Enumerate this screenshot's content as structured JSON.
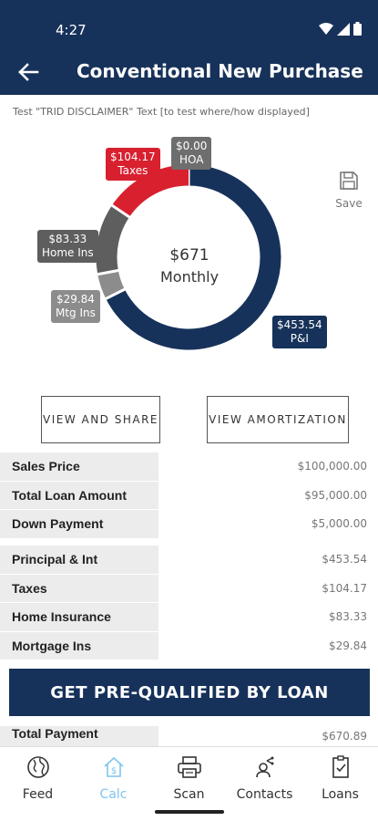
{
  "status": {
    "time": "4:27"
  },
  "header": {
    "title": "Conventional New Purchase"
  },
  "disclaimer": "Test \"TRID DISCLAIMER\" Text [to test where/how displayed]",
  "chart_data": {
    "type": "pie",
    "center_amount": "$671",
    "center_label": "Monthly",
    "slices": [
      {
        "name": "P&I",
        "label": "$453.54",
        "value": 453.54,
        "color": "#17325a"
      },
      {
        "name": "Mtg Ins",
        "label": "$29.84",
        "value": 29.84,
        "color": "#8c8c8c"
      },
      {
        "name": "Home Ins",
        "label": "$83.33",
        "value": 83.33,
        "color": "#5e5e5e"
      },
      {
        "name": "Taxes",
        "label": "$104.17",
        "value": 104.17,
        "color": "#d8202f"
      },
      {
        "name": "HOA",
        "label": "$0.00",
        "value": 0.0,
        "color": "#6e6e6e"
      }
    ]
  },
  "save_label": "Save",
  "buttons": {
    "view_share": "VIEW AND SHARE",
    "view_amort": "VIEW AMORTIZATION"
  },
  "summary": [
    {
      "label": "Sales Price",
      "value": "$100,000.00"
    },
    {
      "label": "Total Loan Amount",
      "value": "$95,000.00"
    },
    {
      "label": "Down Payment",
      "value": "$5,000.00"
    }
  ],
  "breakdown": [
    {
      "label": "Principal & Int",
      "value": "$453.54"
    },
    {
      "label": "Taxes",
      "value": "$104.17"
    },
    {
      "label": "Home Insurance",
      "value": "$83.33"
    },
    {
      "label": "Mortgage Ins",
      "value": "$29.84"
    }
  ],
  "cta": "GET PRE-QUALIFIED BY LOAN",
  "total": {
    "label": "Total Payment",
    "value": "$670.89"
  },
  "nav": [
    {
      "label": "Feed",
      "icon": "globe-icon",
      "active": false
    },
    {
      "label": "Calc",
      "icon": "calculator-house-icon",
      "active": true
    },
    {
      "label": "Scan",
      "icon": "printer-icon",
      "active": false
    },
    {
      "label": "Contacts",
      "icon": "contact-share-icon",
      "active": false
    },
    {
      "label": "Loans",
      "icon": "checklist-icon",
      "active": false
    }
  ]
}
